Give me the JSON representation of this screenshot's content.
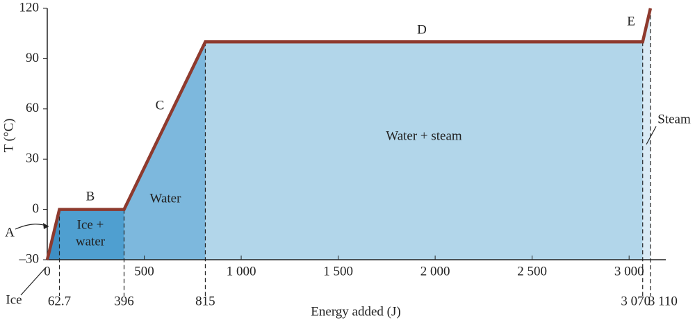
{
  "chart_data": {
    "type": "line",
    "xlabel": "Energy added (J)",
    "ylabel": "T (°C)",
    "x": [
      0,
      62.7,
      396,
      815,
      3070,
      3110
    ],
    "series": [
      {
        "color": "#8e3a2e",
        "values": [
          -30,
          0,
          0,
          100,
          100,
          120
        ]
      }
    ],
    "xlim": [
      0,
      3200
    ],
    "xticks": [
      0,
      500,
      {
        "value": 1000,
        "label": "1 000"
      },
      {
        "value": 1500,
        "label": "1 500"
      },
      {
        "value": 2000,
        "label": "2 000"
      },
      {
        "value": 2500,
        "label": "2 500"
      },
      {
        "value": 3000,
        "label": "3 000"
      }
    ],
    "ylim": [
      -30,
      120
    ],
    "yticks": [
      {
        "value": -30,
        "label": "–30"
      },
      0,
      30,
      60,
      90,
      120
    ],
    "markers": [
      62.7,
      396,
      815,
      {
        "value": 3070,
        "label": "3 070"
      },
      {
        "value": 3110,
        "label": "3 110"
      }
    ],
    "region_colors": [
      "#3f8fc4",
      "#4f9fd0",
      "#7db8dd",
      "#b2d6ea",
      "#d9eaf5"
    ],
    "annotations": [
      "A",
      "B",
      "C",
      "D",
      "E",
      "Ice +",
      "water",
      "Water",
      "Water + steam",
      "Steam",
      "Ice"
    ]
  }
}
